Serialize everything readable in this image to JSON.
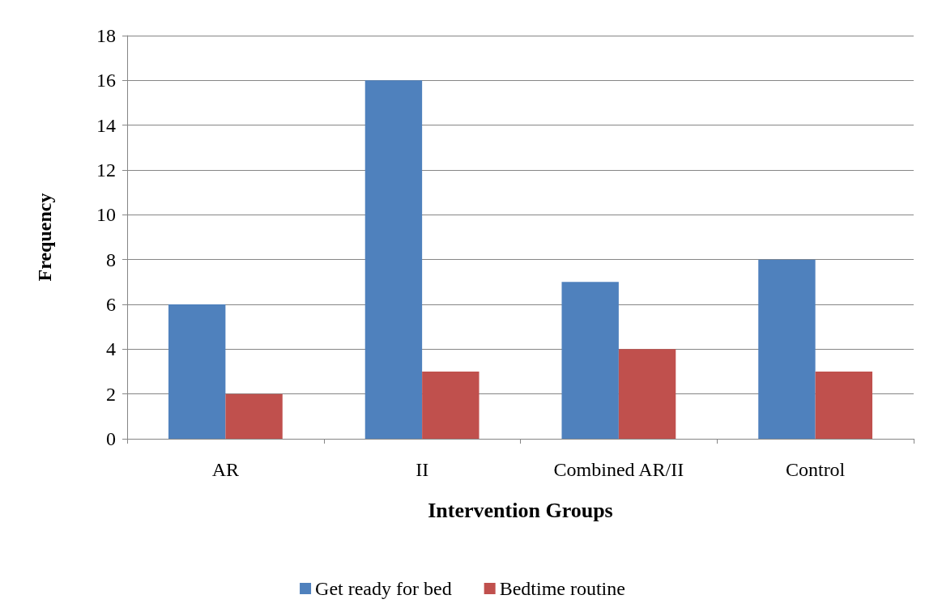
{
  "chart_data": {
    "type": "bar",
    "xlabel": "Intervention Groups",
    "ylabel": "Frequency",
    "categories": [
      "AR",
      "II",
      "Combined AR/II",
      "Control"
    ],
    "series": [
      {
        "name": "Get ready for bed",
        "color": "#4f81bd",
        "values": [
          6,
          16,
          7,
          8
        ]
      },
      {
        "name": "Bedtime routine",
        "color": "#c0504d",
        "values": [
          2,
          3,
          4,
          3
        ]
      }
    ],
    "ylim": [
      0,
      18
    ],
    "yticks": [
      0,
      2,
      4,
      6,
      8,
      10,
      12,
      14,
      16,
      18
    ],
    "grid": "y",
    "legend": "bottom"
  }
}
